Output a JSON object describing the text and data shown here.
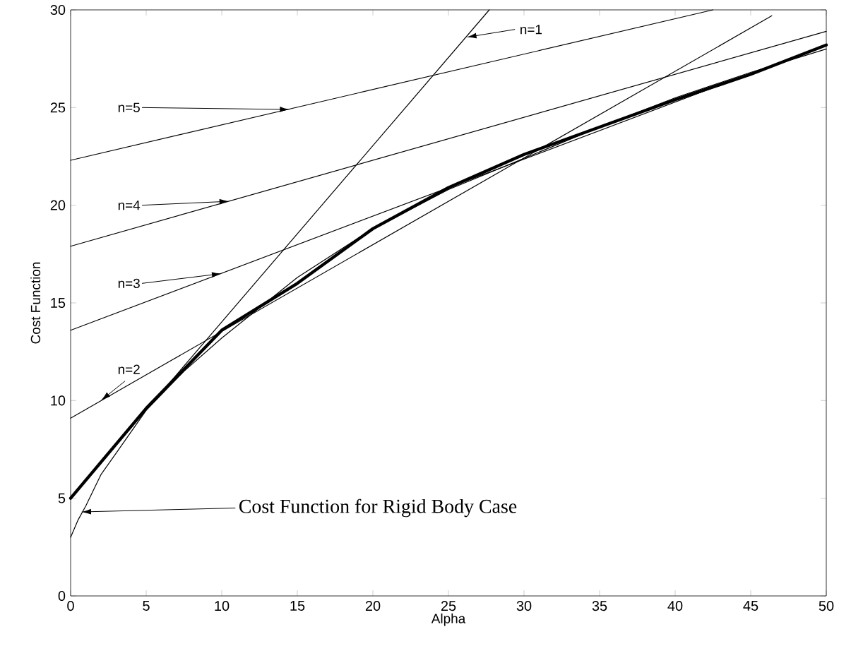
{
  "chart_data": {
    "type": "line",
    "xlabel": "Alpha",
    "ylabel": "Cost Function",
    "xlim": [
      0,
      50
    ],
    "ylim": [
      0,
      30
    ],
    "xticks": [
      0,
      5,
      10,
      15,
      20,
      25,
      30,
      35,
      40,
      45,
      50
    ],
    "yticks": [
      0,
      5,
      10,
      15,
      20,
      25,
      30
    ],
    "grid": false,
    "marker": "none",
    "line_style": "solid",
    "series": [
      {
        "color": "#000000",
        "x": [
          0,
          27.7
        ],
        "values": [
          5.0,
          30.0
        ]
      },
      {
        "color": "#000000",
        "x": [
          0,
          46.4
        ],
        "values": [
          9.1,
          29.7
        ]
      },
      {
        "color": "#000000",
        "x": [
          0,
          50
        ],
        "values": [
          13.6,
          28.2
        ]
      },
      {
        "color": "#000000",
        "x": [
          0,
          50
        ],
        "values": [
          17.9,
          28.9
        ]
      },
      {
        "color": "#000000",
        "x": [
          0,
          42.5
        ],
        "values": [
          22.3,
          30.0
        ]
      },
      {
        "color": "#000000",
        "x": [
          0,
          0.5,
          1,
          2,
          3,
          5,
          7.5,
          10,
          15,
          20,
          25,
          30,
          35,
          40,
          45,
          50
        ],
        "values": [
          3.0,
          3.9,
          4.6,
          6.2,
          7.3,
          9.5,
          11.5,
          13.2,
          16.3,
          18.8,
          20.8,
          22.4,
          24.0,
          25.5,
          26.8,
          28.0
        ]
      },
      {
        "color": "#000000",
        "x": [
          0,
          5,
          10,
          15,
          20,
          25,
          30,
          35,
          40,
          45,
          50
        ],
        "values": [
          5.0,
          9.6,
          13.6,
          16.0,
          18.8,
          20.9,
          22.6,
          24.0,
          25.4,
          26.7,
          28.2
        ]
      }
    ],
    "annotations": [
      {
        "text": "n=1",
        "x": 26.2,
        "y": 28.6
      },
      {
        "text": "n=2",
        "x": 2.0,
        "y": 10.0
      },
      {
        "text": "n=3",
        "x": 10.0,
        "y": 16.5
      },
      {
        "text": "n=4",
        "x": 10.5,
        "y": 20.2
      },
      {
        "text": "n=5",
        "x": 14.5,
        "y": 24.9
      },
      {
        "text": "Cost Function for Rigid Body Case",
        "x": 0.7,
        "y": 4.3
      }
    ]
  }
}
